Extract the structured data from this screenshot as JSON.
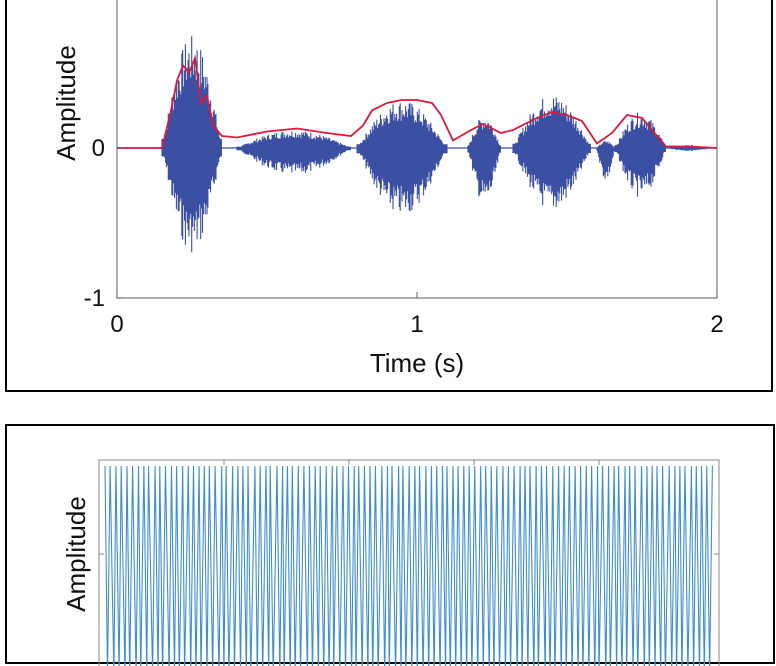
{
  "chart_data": [
    {
      "type": "line",
      "title": "",
      "xlabel": "Time (s)",
      "ylabel": "Amplitude",
      "xlim": [
        0,
        2
      ],
      "ylim": [
        -1,
        1
      ],
      "xticks": [
        "0",
        "1",
        "2"
      ],
      "yticks": [
        "-1",
        "0"
      ],
      "series": [
        {
          "role": "waveform",
          "color": "#3b4fa3",
          "segments": [
            {
              "x": [
                0.15,
                0.35
              ],
              "y_max": 0.75,
              "y_min": -0.7
            },
            {
              "x": [
                0.4,
                0.78
              ],
              "y_max": 0.12,
              "y_min": -0.18
            },
            {
              "x": [
                0.8,
                1.1
              ],
              "y_max": 0.32,
              "y_min": -0.45
            },
            {
              "x": [
                1.17,
                1.28
              ],
              "y_max": 0.22,
              "y_min": -0.38
            },
            {
              "x": [
                1.32,
                1.58
              ],
              "y_max": 0.36,
              "y_min": -0.42
            },
            {
              "x": [
                1.6,
                1.66
              ],
              "y_max": 0.05,
              "y_min": -0.22
            },
            {
              "x": [
                1.66,
                1.83
              ],
              "y_max": 0.24,
              "y_min": -0.33
            },
            {
              "x": [
                1.83,
                1.99
              ],
              "y_max": 0.02,
              "y_min": -0.02
            }
          ]
        },
        {
          "role": "envelope",
          "color": "#d81b3c",
          "x": [
            0.0,
            0.15,
            0.18,
            0.2,
            0.22,
            0.24,
            0.26,
            0.28,
            0.3,
            0.32,
            0.35,
            0.4,
            0.5,
            0.6,
            0.7,
            0.78,
            0.82,
            0.85,
            0.9,
            0.95,
            1.0,
            1.05,
            1.08,
            1.12,
            1.18,
            1.22,
            1.28,
            1.32,
            1.4,
            1.45,
            1.5,
            1.55,
            1.6,
            1.65,
            1.7,
            1.75,
            1.8,
            1.83,
            1.9,
            2.0
          ],
          "y": [
            0.0,
            0.0,
            0.25,
            0.45,
            0.55,
            0.5,
            0.6,
            0.3,
            0.35,
            0.15,
            0.08,
            0.07,
            0.11,
            0.13,
            0.1,
            0.08,
            0.15,
            0.25,
            0.3,
            0.32,
            0.32,
            0.3,
            0.22,
            0.05,
            0.12,
            0.16,
            0.1,
            0.12,
            0.2,
            0.24,
            0.22,
            0.18,
            0.03,
            0.1,
            0.22,
            0.2,
            0.08,
            0.01,
            0.01,
            0.0
          ]
        }
      ]
    },
    {
      "type": "line",
      "title": "",
      "xlabel": "",
      "ylabel": "Amplitude",
      "series": [
        {
          "role": "oscillating signal",
          "color": "#3f8fcd",
          "cycles": 110
        }
      ]
    }
  ]
}
